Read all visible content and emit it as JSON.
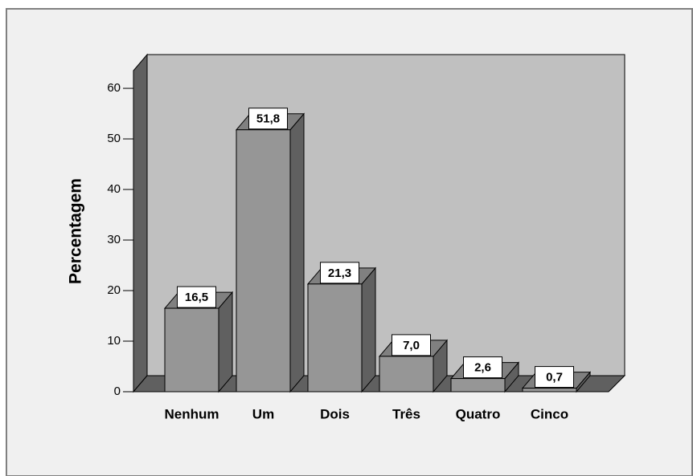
{
  "chart_data": {
    "type": "bar3d",
    "y_label": "Percentagem",
    "categories": [
      "Nenhum",
      "Um",
      "Dois",
      "Três",
      "Quatro",
      "Cinco"
    ],
    "values": [
      16.5,
      51.8,
      21.3,
      7.0,
      2.6,
      0.7
    ],
    "value_labels": [
      "16,5",
      "51,8",
      "21,3",
      "7,0",
      "2,6",
      "0,7"
    ],
    "color": "#969696",
    "ylim": [
      0,
      63.5
    ],
    "yticks": [
      0,
      10,
      20,
      30,
      40,
      50,
      60
    ]
  }
}
